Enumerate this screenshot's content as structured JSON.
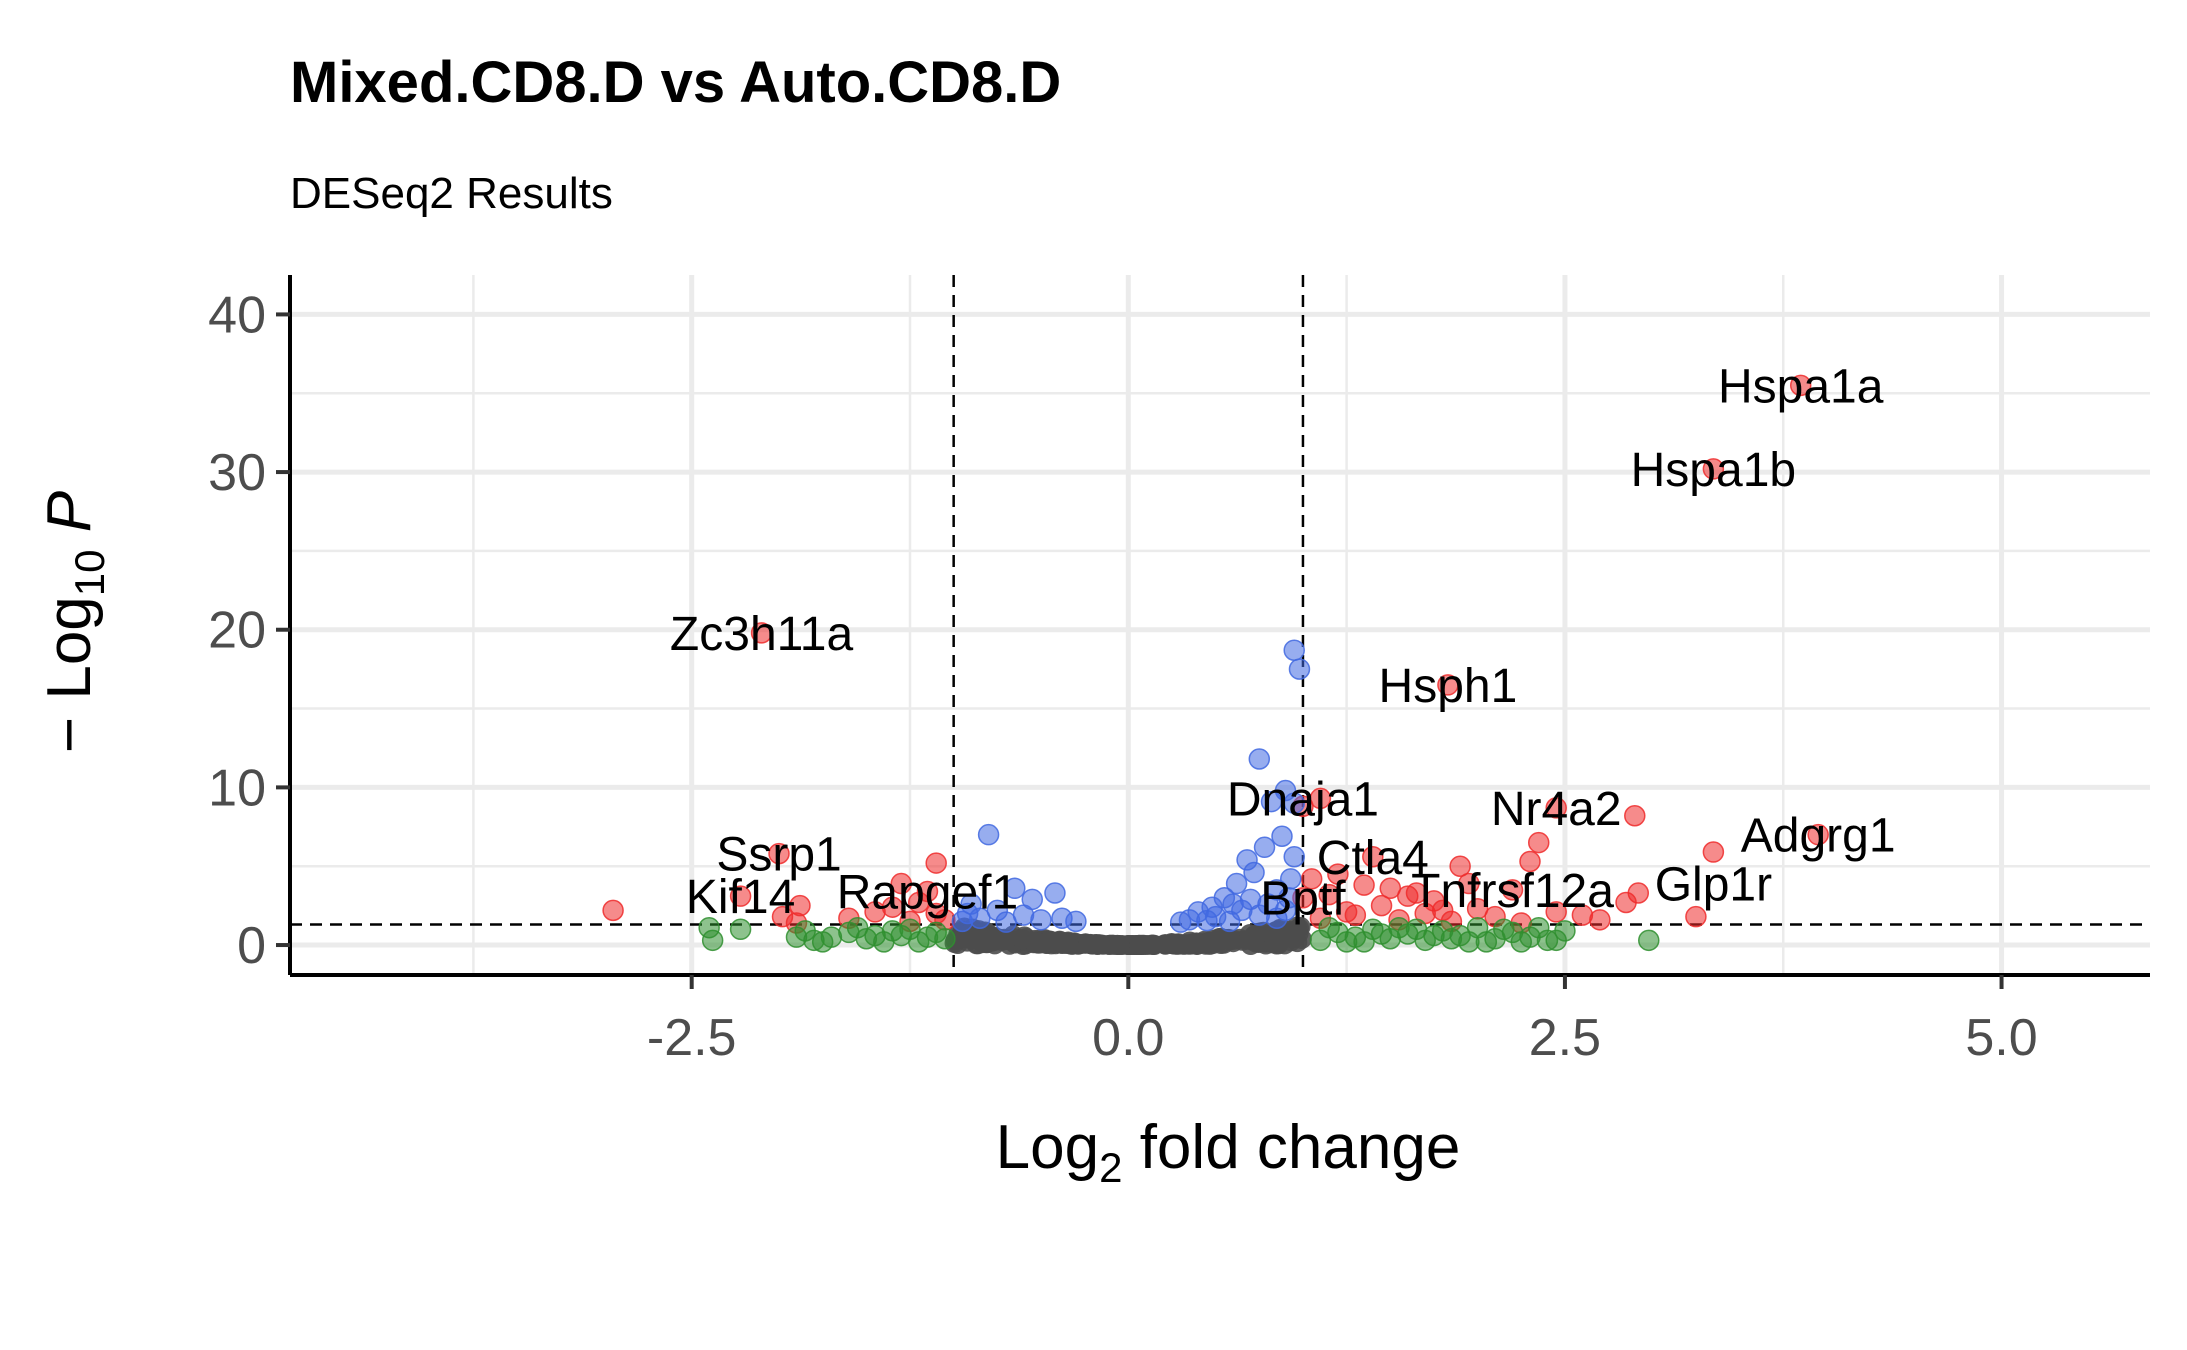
{
  "chart_data": {
    "type": "scatter",
    "title": "Mixed.CD8.D vs Auto.CD8.D",
    "subtitle": "DESeq2 Results",
    "xlabel": {
      "prefix": "Log",
      "sub": "2",
      "suffix": " fold change"
    },
    "ylabel": {
      "prefix": "− Log",
      "sub": "10",
      "italic": "P"
    },
    "xlim": [
      -4.8,
      5.85
    ],
    "ylim": [
      -1.9,
      42.5
    ],
    "x_ticks": [
      -2.5,
      0.0,
      2.5,
      5.0
    ],
    "x_tick_labels": [
      "-2.5",
      "0.0",
      "2.5",
      "5.0"
    ],
    "y_ticks": [
      0,
      10,
      20,
      30,
      40
    ],
    "y_tick_labels": [
      "0",
      "10",
      "20",
      "30",
      "40"
    ],
    "grid": true,
    "fc_cutoffs": [
      -1,
      1
    ],
    "p_cutoff": 1.3,
    "colors": {
      "ns": "#4d4d4d",
      "log2fc": "#2f8f2f",
      "p": "#4169e1",
      "p_and_log2fc": "#ee2c2c",
      "grid": "#ebebeb",
      "axis": "#000000"
    },
    "series": [
      {
        "key": "p_and_log2fc",
        "points": [
          [
            3.85,
            35.5
          ],
          [
            3.35,
            30.2
          ],
          [
            -2.1,
            19.8
          ],
          [
            1.83,
            16.5
          ],
          [
            3.95,
            7.0
          ],
          [
            3.35,
            5.9
          ],
          [
            2.9,
            8.2
          ],
          [
            2.45,
            8.7
          ],
          [
            2.35,
            6.5
          ],
          [
            2.3,
            5.3
          ],
          [
            1.9,
            5.0
          ],
          [
            3.25,
            1.8
          ],
          [
            2.92,
            3.3
          ],
          [
            2.85,
            2.7
          ],
          [
            2.6,
            1.9
          ],
          [
            2.7,
            1.6
          ],
          [
            2.45,
            2.1
          ],
          [
            2.2,
            3.5
          ],
          [
            2.25,
            1.4
          ],
          [
            2.0,
            2.3
          ],
          [
            1.75,
            2.8
          ],
          [
            1.6,
            3.1
          ],
          [
            1.45,
            2.5
          ],
          [
            1.35,
            3.8
          ],
          [
            1.25,
            2.1
          ],
          [
            1.15,
            3.2
          ],
          [
            1.1,
            1.7
          ],
          [
            1.05,
            4.2
          ],
          [
            1.2,
            4.5
          ],
          [
            1.3,
            1.9
          ],
          [
            1.5,
            3.6
          ],
          [
            1.7,
            2.0
          ],
          [
            1.95,
            3.9
          ],
          [
            1.55,
            1.6
          ],
          [
            1.4,
            5.6
          ],
          [
            1.8,
            2.2
          ],
          [
            2.1,
            1.8
          ],
          [
            1.65,
            3.3
          ],
          [
            1.0,
            8.8
          ],
          [
            1.1,
            9.3
          ],
          [
            1.0,
            3.0
          ],
          [
            1.85,
            1.5
          ],
          [
            -2.0,
            5.8
          ],
          [
            -2.22,
            3.1
          ],
          [
            -1.88,
            2.5
          ],
          [
            -2.95,
            2.2
          ],
          [
            -1.98,
            1.8
          ],
          [
            -1.1,
            5.2
          ],
          [
            -1.15,
            3.4
          ],
          [
            -1.2,
            2.7
          ],
          [
            -1.3,
            3.9
          ],
          [
            -1.05,
            1.6
          ],
          [
            -1.45,
            2.1
          ],
          [
            -1.25,
            1.5
          ],
          [
            -1.9,
            1.4
          ],
          [
            -1.6,
            1.7
          ],
          [
            -1.35,
            2.4
          ],
          [
            -1.1,
            2.0
          ]
        ]
      },
      {
        "key": "p",
        "points": [
          [
            0.95,
            18.7
          ],
          [
            0.98,
            17.5
          ],
          [
            0.75,
            11.8
          ],
          [
            0.9,
            9.8
          ],
          [
            0.82,
            9.1
          ],
          [
            0.95,
            9.0
          ],
          [
            0.88,
            6.9
          ],
          [
            0.78,
            6.2
          ],
          [
            0.68,
            5.4
          ],
          [
            0.95,
            5.6
          ],
          [
            0.72,
            4.6
          ],
          [
            0.62,
            3.9
          ],
          [
            0.85,
            3.5
          ],
          [
            0.93,
            4.2
          ],
          [
            0.55,
            3.0
          ],
          [
            0.6,
            2.6
          ],
          [
            0.7,
            2.9
          ],
          [
            0.48,
            2.4
          ],
          [
            0.8,
            2.6
          ],
          [
            0.9,
            2.2
          ],
          [
            0.4,
            2.1
          ],
          [
            0.65,
            2.2
          ],
          [
            0.75,
            1.9
          ],
          [
            0.5,
            1.8
          ],
          [
            0.35,
            1.6
          ],
          [
            0.85,
            1.7
          ],
          [
            0.58,
            1.5
          ],
          [
            0.92,
            3.0
          ],
          [
            0.3,
            1.45
          ],
          [
            0.45,
            1.55
          ],
          [
            -0.8,
            7.0
          ],
          [
            -0.65,
            3.6
          ],
          [
            -0.55,
            2.9
          ],
          [
            -0.42,
            3.3
          ],
          [
            -0.9,
            2.6
          ],
          [
            -0.75,
            2.2
          ],
          [
            -0.6,
            1.9
          ],
          [
            -0.85,
            1.7
          ],
          [
            -0.5,
            1.6
          ],
          [
            -0.95,
            1.5
          ],
          [
            -0.7,
            1.45
          ],
          [
            -0.3,
            1.5
          ],
          [
            -0.38,
            1.7
          ],
          [
            -0.92,
            2.0
          ]
        ]
      },
      {
        "key": "log2fc",
        "points": [
          [
            -2.38,
            0.3
          ],
          [
            -2.22,
            1.0
          ],
          [
            -2.4,
            1.1
          ],
          [
            -1.8,
            0.3
          ],
          [
            -1.7,
            0.5
          ],
          [
            -1.5,
            0.4
          ],
          [
            -1.3,
            0.6
          ],
          [
            -1.2,
            0.2
          ],
          [
            -1.1,
            0.8
          ],
          [
            -1.6,
            0.8
          ],
          [
            -1.4,
            0.2
          ],
          [
            -1.85,
            0.9
          ],
          [
            -1.25,
            1.0
          ],
          [
            -1.05,
            0.4
          ],
          [
            -1.75,
            0.2
          ],
          [
            -1.55,
            1.1
          ],
          [
            -1.35,
            0.9
          ],
          [
            -1.15,
            0.5
          ],
          [
            -1.9,
            0.5
          ],
          [
            -1.45,
            0.6
          ],
          [
            1.1,
            0.3
          ],
          [
            1.2,
            0.8
          ],
          [
            1.3,
            0.5
          ],
          [
            1.4,
            1.0
          ],
          [
            1.5,
            0.4
          ],
          [
            1.6,
            0.7
          ],
          [
            1.7,
            0.3
          ],
          [
            1.8,
            0.9
          ],
          [
            1.9,
            0.6
          ],
          [
            2.0,
            1.1
          ],
          [
            2.1,
            0.4
          ],
          [
            2.2,
            0.8
          ],
          [
            2.3,
            0.5
          ],
          [
            2.4,
            0.3
          ],
          [
            2.5,
            0.9
          ],
          [
            2.45,
            0.3
          ],
          [
            2.98,
            0.3
          ],
          [
            2.05,
            0.2
          ],
          [
            1.15,
            1.1
          ],
          [
            1.35,
            0.2
          ],
          [
            1.55,
            1.1
          ],
          [
            1.75,
            0.6
          ],
          [
            1.95,
            0.2
          ],
          [
            2.15,
            1.0
          ],
          [
            2.35,
            1.1
          ],
          [
            1.25,
            0.2
          ],
          [
            1.45,
            0.7
          ],
          [
            1.65,
            1.0
          ],
          [
            1.85,
            0.4
          ],
          [
            2.25,
            0.2
          ]
        ]
      }
    ],
    "ns_cloud": {
      "x_min": -1.0,
      "x_max": 1.0,
      "count": 260
    },
    "labels": [
      {
        "text": "Hspa1a",
        "x": 3.85,
        "y": 35.5
      },
      {
        "text": "Hspa1b",
        "x": 3.35,
        "y": 30.2
      },
      {
        "text": "Zc3h11a",
        "x": -2.1,
        "y": 19.8
      },
      {
        "text": "Hsph1",
        "x": 1.83,
        "y": 16.5
      },
      {
        "text": "Dnaja1",
        "x": 1.0,
        "y": 9.3
      },
      {
        "text": "Nr4a2",
        "x": 2.45,
        "y": 8.7
      },
      {
        "text": "Adgrg1",
        "x": 3.95,
        "y": 7.0
      },
      {
        "text": "Ctla4",
        "x": 1.4,
        "y": 5.6
      },
      {
        "text": "Glp1r",
        "x": 3.35,
        "y": 3.9
      },
      {
        "text": "Ssrp1",
        "x": -2.0,
        "y": 5.8
      },
      {
        "text": "Kif14",
        "x": -2.22,
        "y": 3.1
      },
      {
        "text": "Rapgef1",
        "x": -1.15,
        "y": 3.4
      },
      {
        "text": "Tnfrsf12a",
        "x": 2.2,
        "y": 3.5
      },
      {
        "text": "Bptf",
        "x": 1.0,
        "y": 3.0
      }
    ]
  }
}
